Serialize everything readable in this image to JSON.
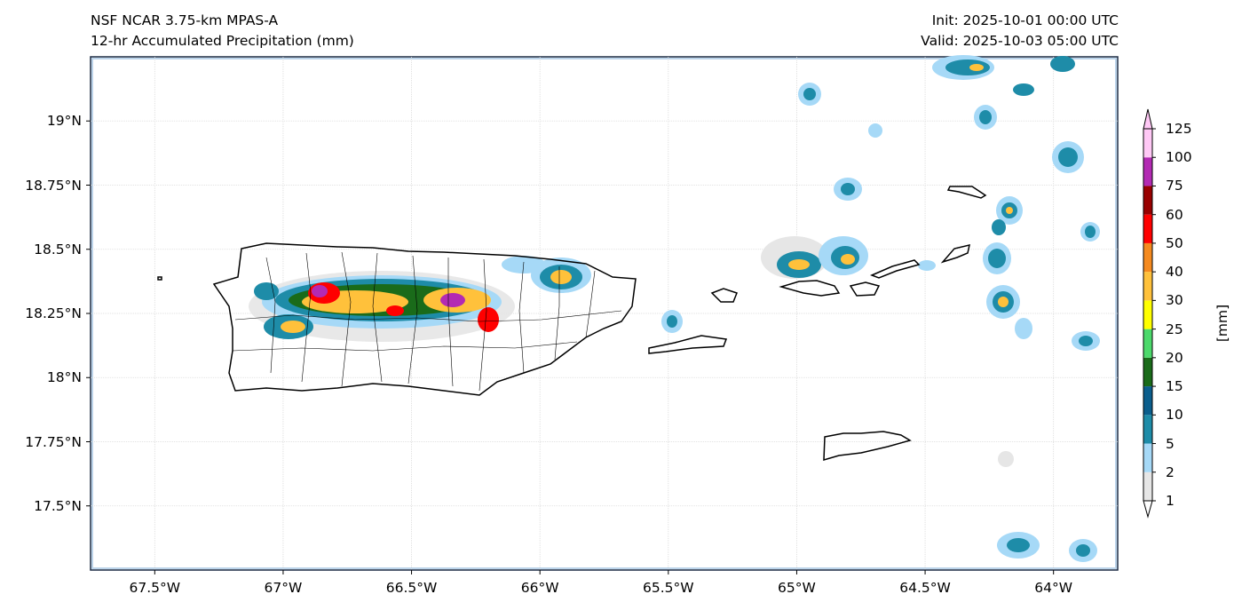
{
  "header": {
    "model": "NSF NCAR 3.75-km MPAS-A",
    "field": "12-hr Accumulated Precipitation (mm)",
    "init": "Init: 2025-10-01 00:00 UTC",
    "valid": "Valid: 2025-10-03 05:00 UTC"
  },
  "map": {
    "extent": {
      "lon_min": -67.75,
      "lon_max": -63.75,
      "lat_min": 17.25,
      "lat_max": 19.25
    },
    "lat_ticks": [
      {
        "value": 19.0,
        "label": "19°N"
      },
      {
        "value": 18.75,
        "label": "18.75°N"
      },
      {
        "value": 18.5,
        "label": "18.5°N"
      },
      {
        "value": 18.25,
        "label": "18.25°N"
      },
      {
        "value": 18.0,
        "label": "18°N"
      },
      {
        "value": 17.75,
        "label": "17.75°N"
      },
      {
        "value": 17.5,
        "label": "17.5°N"
      }
    ],
    "lon_ticks": [
      {
        "value": -67.5,
        "label": "67.5°W"
      },
      {
        "value": -67.0,
        "label": "67°W"
      },
      {
        "value": -66.5,
        "label": "66.5°W"
      },
      {
        "value": -66.0,
        "label": "66°W"
      },
      {
        "value": -65.5,
        "label": "65.5°W"
      },
      {
        "value": -65.0,
        "label": "65°W"
      },
      {
        "value": -64.5,
        "label": "64.5°W"
      },
      {
        "value": -64.0,
        "label": "64°W"
      }
    ],
    "gridlines": true
  },
  "colorbar": {
    "units": "[mm]",
    "levels": [
      "1",
      "2",
      "5",
      "10",
      "15",
      "20",
      "25",
      "30",
      "40",
      "50",
      "60",
      "75",
      "100",
      "125"
    ],
    "colors": [
      "#e6e6e6",
      "#a6d9f7",
      "#1e8ca8",
      "#0b5e8c",
      "#1a6b1a",
      "#4cd96b",
      "#ffff00",
      "#ffc13b",
      "#f58a1f",
      "#ff0000",
      "#990000",
      "#b32ab3",
      "#ffc8f5"
    ]
  }
}
